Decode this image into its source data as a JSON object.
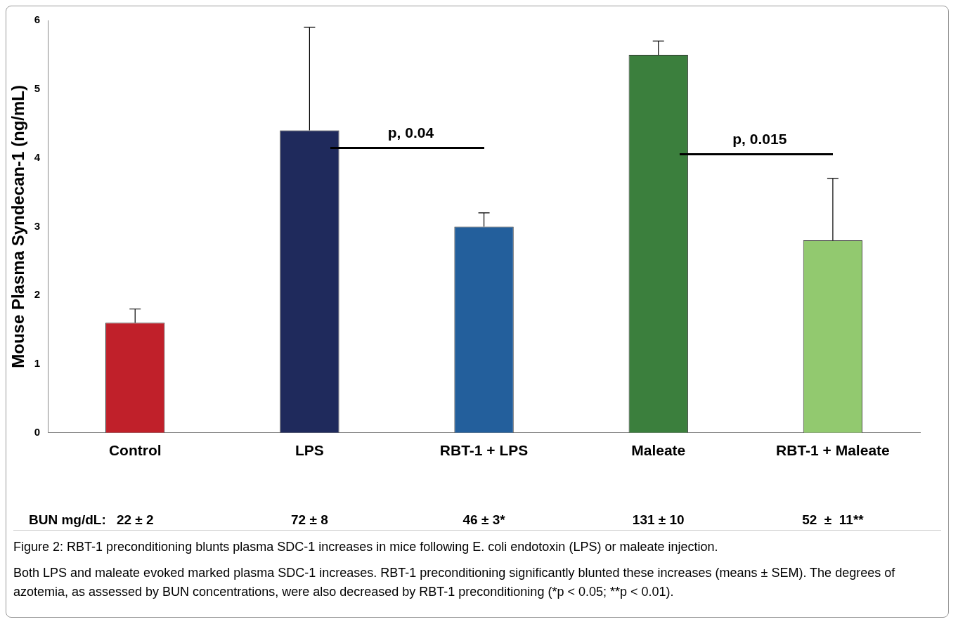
{
  "chart_data": {
    "type": "bar",
    "ylabel": "Mouse Plasma Syndecan-1 (ng/mL)",
    "categories": [
      "Control",
      "LPS",
      "RBT-1 + LPS",
      "Maleate",
      "RBT-1 + Maleate"
    ],
    "values": [
      1.6,
      4.4,
      3.0,
      5.5,
      2.8
    ],
    "colors": [
      "#c0202a",
      "#1f2a5c",
      "#235f9c",
      "#3b7f3d",
      "#92c96f"
    ],
    "errors": [
      [
        1.6,
        1.8
      ],
      [
        4.4,
        5.9
      ],
      [
        3.0,
        3.2
      ],
      [
        5.5,
        5.7
      ],
      [
        2.8,
        3.7
      ]
    ],
    "ylim": [
      0,
      6
    ],
    "yticks": [
      0,
      1,
      2,
      3,
      4,
      5,
      6
    ],
    "grid": false,
    "legend": false,
    "annotations": [
      "p, 0.04",
      "p, 0.015",
      "BUN mg/dL:",
      "22 ± 2",
      "72 ± 8",
      "46 ± 3*",
      "131 ± 10",
      "52  ±  11**",
      "Figure 2: RBT-1 preconditioning blunts plasma SDC-1 increases in mice following E. coli endotoxin (LPS) or maleate injection.",
      "Both LPS and maleate evoked marked plasma SDC-1 increases. RBT-1 preconditioning significantly blunted these increases (means ± SEM). The degrees of azotemia, as assessed by BUN concentrations, were also decreased by RBT-1 preconditioning (*p < 0.05; **p < 0.01)."
    ]
  }
}
